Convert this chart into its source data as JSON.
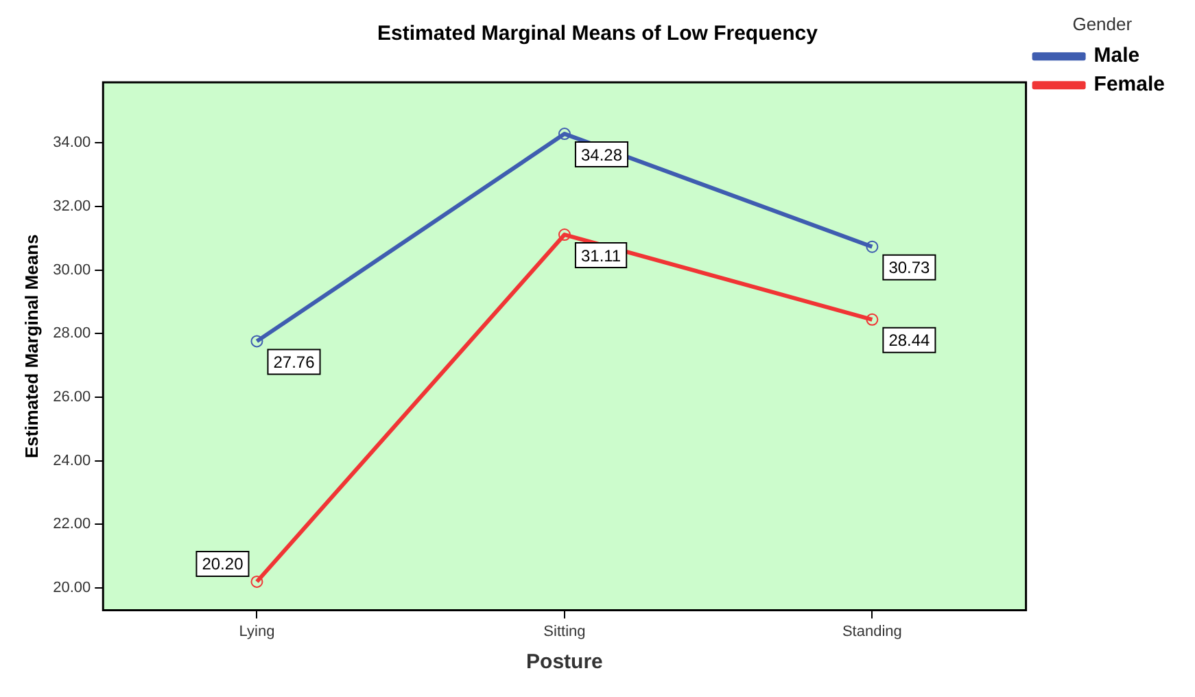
{
  "chart_data": {
    "type": "line",
    "title": "Estimated Marginal Means of Low Frequency",
    "xlabel": "Posture",
    "ylabel": "Estimated Marginal Means",
    "legend_title": "Gender",
    "categories": [
      "Lying",
      "Sitting",
      "Standing"
    ],
    "series": [
      {
        "name": "Male",
        "color": "#3f5db0",
        "values": [
          27.76,
          34.28,
          30.73
        ],
        "value_labels": [
          "27.76",
          "34.28",
          "30.73"
        ]
      },
      {
        "name": "Female",
        "color": "#f03535",
        "values": [
          20.2,
          31.11,
          28.44
        ],
        "value_labels": [
          "20.20",
          "31.11",
          "28.44"
        ]
      }
    ],
    "ylim": [
      19.3,
      35.9
    ],
    "yticks": [
      {
        "value": 20,
        "label": "20.00"
      },
      {
        "value": 22,
        "label": "22.00"
      },
      {
        "value": 24,
        "label": "24.00"
      },
      {
        "value": 26,
        "label": "26.00"
      },
      {
        "value": 28,
        "label": "28.00"
      },
      {
        "value": 30,
        "label": "30.00"
      },
      {
        "value": 32,
        "label": "32.00"
      },
      {
        "value": 34,
        "label": "34.00"
      }
    ],
    "grid": false,
    "legend": "top right",
    "marker": "circle",
    "line_style": "solid"
  }
}
